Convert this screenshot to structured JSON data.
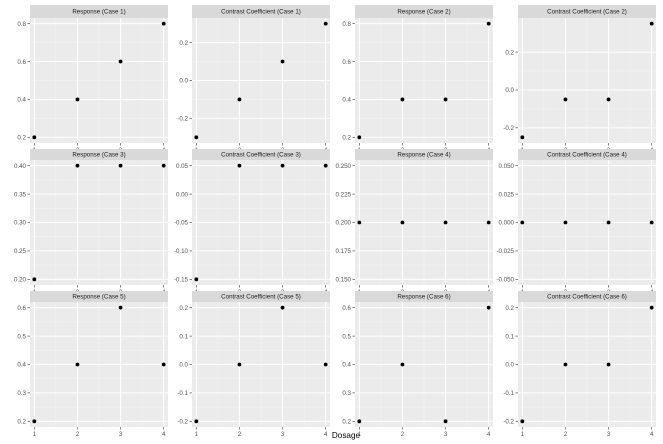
{
  "figure": {
    "xlabel": "Dosage",
    "colors": {
      "panel_background": "#ebebeb",
      "strip_background": "#d9d9d9",
      "grid_major": "#ffffff",
      "grid_minor": "#f5f5f5",
      "point": "#000000",
      "tick": "#333333"
    }
  },
  "chart_data": [
    {
      "type": "scatter",
      "title": "Response (Case 1)",
      "x": [
        1,
        2,
        3,
        4
      ],
      "y": [
        0.2,
        0.4,
        0.6,
        0.8
      ],
      "xlim": [
        0.9,
        4.1
      ],
      "ylim": [
        0.17,
        0.83
      ],
      "xticks": [
        1,
        2,
        3,
        4
      ],
      "yticks": [
        0.2,
        0.4,
        0.6,
        0.8
      ],
      "ytick_labels": [
        "0.2",
        "0.4",
        "0.6",
        "0.8"
      ],
      "xlabel": "Dosage",
      "grid": true
    },
    {
      "type": "scatter",
      "title": "Contrast Coefficient (Case 1)",
      "x": [
        1,
        2,
        3,
        4
      ],
      "y": [
        -0.3,
        -0.1,
        0.1,
        0.3
      ],
      "xlim": [
        0.9,
        4.1
      ],
      "ylim": [
        -0.33,
        0.33
      ],
      "xticks": [
        1,
        2,
        3,
        4
      ],
      "yticks": [
        -0.2,
        0.0,
        0.2
      ],
      "ytick_labels": [
        "-0.2",
        "0.0",
        "0.2"
      ],
      "xlabel": "Dosage",
      "grid": true
    },
    {
      "type": "scatter",
      "title": "Response (Case 2)",
      "x": [
        1,
        2,
        3,
        4
      ],
      "y": [
        0.2,
        0.4,
        0.4,
        0.8
      ],
      "xlim": [
        0.9,
        4.1
      ],
      "ylim": [
        0.17,
        0.83
      ],
      "xticks": [
        1,
        2,
        3,
        4
      ],
      "yticks": [
        0.2,
        0.4,
        0.6,
        0.8
      ],
      "ytick_labels": [
        "0.2",
        "0.4",
        "0.6",
        "0.8"
      ],
      "xlabel": "Dosage",
      "grid": true
    },
    {
      "type": "scatter",
      "title": "Contrast Coefficient (Case 2)",
      "x": [
        1,
        2,
        3,
        4
      ],
      "y": [
        -0.25,
        -0.05,
        -0.05,
        0.35
      ],
      "xlim": [
        0.9,
        4.1
      ],
      "ylim": [
        -0.28,
        0.38
      ],
      "xticks": [
        1,
        2,
        3,
        4
      ],
      "yticks": [
        -0.2,
        0.0,
        0.2
      ],
      "ytick_labels": [
        "-0.2",
        "0.0",
        "0.2"
      ],
      "xlabel": "Dosage",
      "grid": true
    },
    {
      "type": "scatter",
      "title": "Response (Case 3)",
      "x": [
        1,
        2,
        3,
        4
      ],
      "y": [
        0.2,
        0.4,
        0.4,
        0.4
      ],
      "xlim": [
        0.9,
        4.1
      ],
      "ylim": [
        0.19,
        0.41
      ],
      "xticks": [
        1,
        2,
        3,
        4
      ],
      "yticks": [
        0.2,
        0.25,
        0.3,
        0.35,
        0.4
      ],
      "ytick_labels": [
        "0.20",
        "0.25",
        "0.30",
        "0.35",
        "0.40"
      ],
      "xlabel": "Dosage",
      "grid": true
    },
    {
      "type": "scatter",
      "title": "Contrast Coefficient (Case 3)",
      "x": [
        1,
        2,
        3,
        4
      ],
      "y": [
        -0.15,
        0.05,
        0.05,
        0.05
      ],
      "xlim": [
        0.9,
        4.1
      ],
      "ylim": [
        -0.16,
        0.06
      ],
      "xticks": [
        1,
        2,
        3,
        4
      ],
      "yticks": [
        -0.15,
        -0.1,
        -0.05,
        0.0,
        0.05
      ],
      "ytick_labels": [
        "-0.15",
        "-0.10",
        "-0.05",
        "0.00",
        "0.05"
      ],
      "xlabel": "Dosage",
      "grid": true
    },
    {
      "type": "scatter",
      "title": "Response (Case 4)",
      "x": [
        1,
        2,
        3,
        4
      ],
      "y": [
        0.2,
        0.2,
        0.2,
        0.2
      ],
      "xlim": [
        0.9,
        4.1
      ],
      "ylim": [
        0.145,
        0.255
      ],
      "xticks": [
        1,
        2,
        3,
        4
      ],
      "yticks": [
        0.15,
        0.175,
        0.2,
        0.225,
        0.25
      ],
      "ytick_labels": [
        "0.150",
        "0.175",
        "0.200",
        "0.225",
        "0.250"
      ],
      "xlabel": "Dosage",
      "grid": true
    },
    {
      "type": "scatter",
      "title": "Contrast Coefficient (Case 4)",
      "x": [
        1,
        2,
        3,
        4
      ],
      "y": [
        0.0,
        0.0,
        0.0,
        0.0
      ],
      "xlim": [
        0.9,
        4.1
      ],
      "ylim": [
        -0.055,
        0.055
      ],
      "xticks": [
        1,
        2,
        3,
        4
      ],
      "yticks": [
        -0.05,
        -0.025,
        0.0,
        0.025,
        0.05
      ],
      "ytick_labels": [
        "-0.050",
        "-0.025",
        "0.000",
        "0.025",
        "0.050"
      ],
      "xlabel": "Dosage",
      "grid": true
    },
    {
      "type": "scatter",
      "title": "Response (Case 5)",
      "x": [
        1,
        2,
        3,
        4
      ],
      "y": [
        0.2,
        0.4,
        0.6,
        0.4
      ],
      "xlim": [
        0.9,
        4.1
      ],
      "ylim": [
        0.18,
        0.62
      ],
      "xticks": [
        1,
        2,
        3,
        4
      ],
      "yticks": [
        0.2,
        0.3,
        0.4,
        0.5,
        0.6
      ],
      "ytick_labels": [
        "0.2",
        "0.3",
        "0.4",
        "0.5",
        "0.6"
      ],
      "xlabel": "Dosage",
      "grid": true
    },
    {
      "type": "scatter",
      "title": "Contrast Coefficient (Case 5)",
      "x": [
        1,
        2,
        3,
        4
      ],
      "y": [
        -0.2,
        0.0,
        0.2,
        0.0
      ],
      "xlim": [
        0.9,
        4.1
      ],
      "ylim": [
        -0.22,
        0.22
      ],
      "xticks": [
        1,
        2,
        3,
        4
      ],
      "yticks": [
        -0.2,
        -0.1,
        0.0,
        0.1,
        0.2
      ],
      "ytick_labels": [
        "-0.2",
        "-0.1",
        "0.0",
        "0.1",
        "0.2"
      ],
      "xlabel": "Dosage",
      "grid": true
    },
    {
      "type": "scatter",
      "title": "Response (Case 6)",
      "x": [
        1,
        2,
        3,
        4
      ],
      "y": [
        0.2,
        0.4,
        0.2,
        0.6
      ],
      "xlim": [
        0.9,
        4.1
      ],
      "ylim": [
        0.18,
        0.62
      ],
      "xticks": [
        1,
        2,
        3,
        4
      ],
      "yticks": [
        0.2,
        0.3,
        0.4,
        0.5,
        0.6
      ],
      "ytick_labels": [
        "0.2",
        "0.3",
        "0.4",
        "0.5",
        "0.6"
      ],
      "xlabel": "Dosage",
      "grid": true
    },
    {
      "type": "scatter",
      "title": "Contrast Coefficient (Case 6)",
      "x": [
        1,
        2,
        3,
        4
      ],
      "y": [
        -0.2,
        0.0,
        0.0,
        0.2
      ],
      "xlim": [
        0.9,
        4.1
      ],
      "ylim": [
        -0.22,
        0.22
      ],
      "xticks": [
        1,
        2,
        3,
        4
      ],
      "yticks": [
        -0.2,
        -0.1,
        0.0,
        0.1,
        0.2
      ],
      "ytick_labels": [
        "-0.2",
        "-0.1",
        "0.0",
        "0.1",
        "0.2"
      ],
      "xlabel": "Dosage",
      "grid": true
    }
  ]
}
